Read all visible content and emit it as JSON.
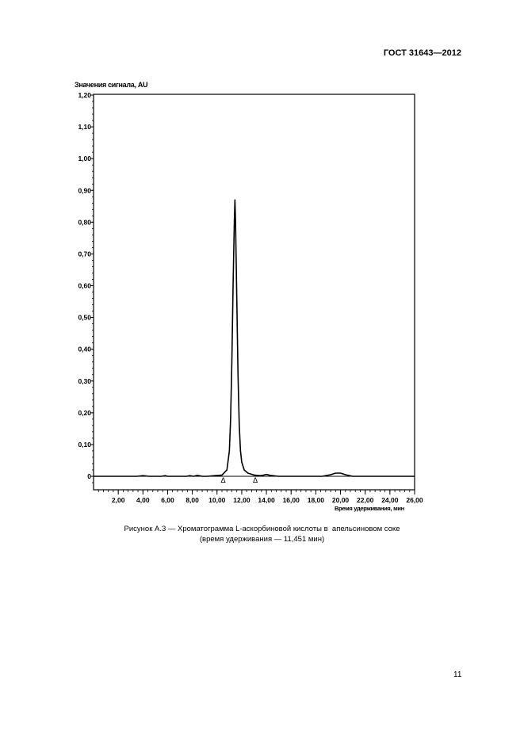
{
  "header": {
    "standard": "ГОСТ 31643—2012"
  },
  "chart_data": {
    "type": "line",
    "title": "",
    "ylabel": "Значения сигнала, AU",
    "xlabel": "Время удерживания, мин",
    "xlim": [
      0,
      26
    ],
    "ylim": [
      -0.04,
      1.2
    ],
    "x_ticks": [
      "2,00",
      "4,00",
      "6,00",
      "8,00",
      "10,00",
      "12,00",
      "14,00",
      "16,00",
      "18,00",
      "20,00",
      "22,00",
      "24,00",
      "26,00"
    ],
    "x_tick_values": [
      2,
      4,
      6,
      8,
      10,
      12,
      14,
      16,
      18,
      20,
      22,
      24,
      26
    ],
    "y_ticks": [
      "0",
      "0,10",
      "0,20",
      "0,30",
      "0,40",
      "0,50",
      "0,60",
      "0,70",
      "0,80",
      "0,90",
      "1,00",
      "1,10",
      "1,20"
    ],
    "y_tick_values": [
      0,
      0.1,
      0.2,
      0.3,
      0.4,
      0.5,
      0.6,
      0.7,
      0.8,
      0.9,
      1.0,
      1.1,
      1.2
    ],
    "grid": false,
    "series": [
      {
        "x": [
          0,
          3.5,
          4.0,
          4.5,
          5.5,
          5.8,
          6.0,
          6.4,
          7.5,
          7.8,
          8.1,
          8.4,
          8.8,
          9.2,
          9.8,
          10.4,
          10.8,
          11.0,
          11.1,
          11.2,
          11.3,
          11.4,
          11.451,
          11.5,
          11.6,
          11.7,
          11.8,
          11.9,
          12.0,
          12.2,
          12.5,
          13.0,
          13.5,
          13.8,
          14.0,
          14.3,
          15.0,
          18.5,
          19.2,
          19.6,
          20.0,
          20.4,
          21.0,
          26.0
        ],
        "y": [
          0,
          0,
          0.002,
          0,
          0,
          0.002,
          0,
          0,
          0,
          0.002,
          0,
          0.003,
          0,
          0,
          0.002,
          0.004,
          0.02,
          0.08,
          0.18,
          0.36,
          0.6,
          0.8,
          0.87,
          0.8,
          0.56,
          0.32,
          0.16,
          0.08,
          0.045,
          0.02,
          0.01,
          0.004,
          0.002,
          0.004,
          0.006,
          0.003,
          0,
          0,
          0.005,
          0.01,
          0.01,
          0.005,
          0,
          0
        ]
      }
    ],
    "integration_markers_x": [
      10.5,
      13.1
    ],
    "marker_symbol": "Δ"
  },
  "caption": {
    "line1": "Рисунок А.3 — Хроматограмма L-аскорбиновой кислоты в  апельсиновом соке",
    "line2": "(время удерживания — 11,451 мин)"
  },
  "page_number": "11"
}
